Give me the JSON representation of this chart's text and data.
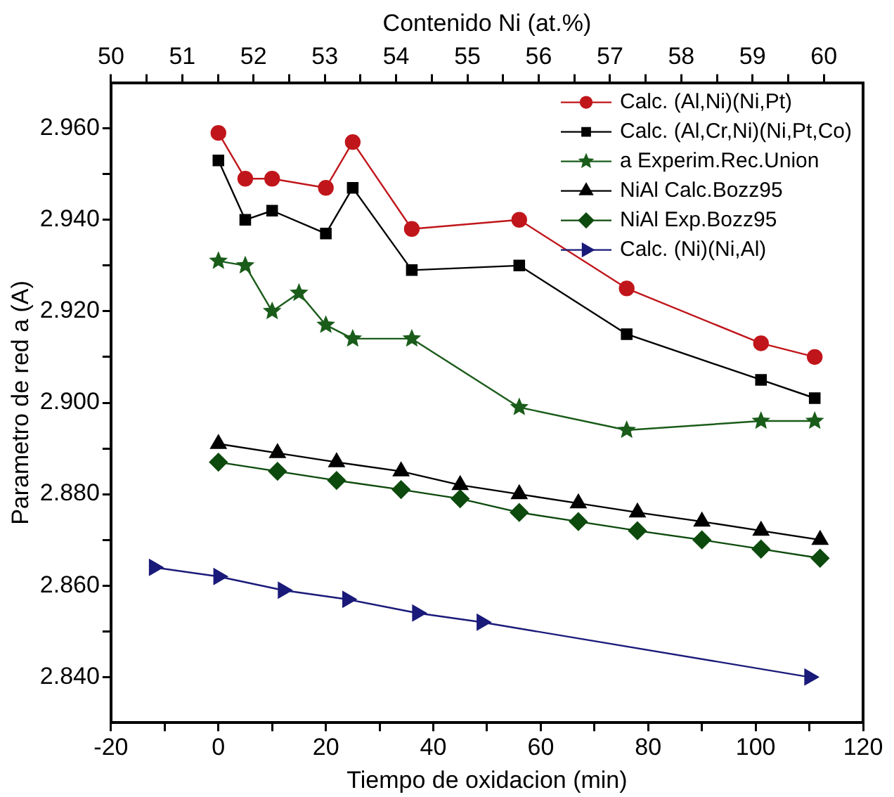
{
  "chart_data": {
    "type": "line",
    "xlabel": "Tiempo de oxidacion (min)",
    "ylabel": "Parametro de red a (A)",
    "x2label": "Contenido Ni (at.%)",
    "xlim": [
      -20,
      120
    ],
    "xticks": [
      -20,
      {
        "value": -10,
        "label": null
      },
      0,
      {
        "value": 10,
        "label": null
      },
      20,
      {
        "value": 30,
        "label": null
      },
      40,
      {
        "value": 50,
        "label": null
      },
      60,
      {
        "value": 70,
        "label": null
      },
      80,
      {
        "value": 90,
        "label": null
      },
      100,
      {
        "value": 110,
        "label": null
      },
      120
    ],
    "x2lim": [
      50,
      60.55
    ],
    "x2ticks": [
      50,
      {
        "value": 50.5,
        "label": null
      },
      51,
      {
        "value": 51.5,
        "label": null
      },
      52,
      {
        "value": 52.5,
        "label": null
      },
      53,
      {
        "value": 53.5,
        "label": null
      },
      54,
      {
        "value": 54.5,
        "label": null
      },
      55,
      {
        "value": 55.5,
        "label": null
      },
      56,
      {
        "value": 56.5,
        "label": null
      },
      57,
      {
        "value": 57.5,
        "label": null
      },
      58,
      {
        "value": 58.5,
        "label": null
      },
      59,
      {
        "value": 59.5,
        "label": null
      },
      60
    ],
    "ylim": [
      2.83,
      2.97
    ],
    "yticks": [
      {
        "value": 2.84,
        "label": "2.840"
      },
      {
        "value": 2.85,
        "label": null
      },
      {
        "value": 2.86,
        "label": "2.860"
      },
      {
        "value": 2.87,
        "label": null
      },
      {
        "value": 2.88,
        "label": "2.880"
      },
      {
        "value": 2.89,
        "label": null
      },
      {
        "value": 2.9,
        "label": "2.900"
      },
      {
        "value": 2.91,
        "label": null
      },
      {
        "value": 2.92,
        "label": "2.920"
      },
      {
        "value": 2.93,
        "label": null
      },
      {
        "value": 2.94,
        "label": "2.940"
      },
      {
        "value": 2.95,
        "label": null
      },
      {
        "value": 2.96,
        "label": "2.960"
      }
    ],
    "grid": false,
    "legend": "top right",
    "series": [
      {
        "name": "Calc. (Al,Ni)(Ni,Pt)",
        "color": "#c0161b",
        "marker": "circle",
        "x": [
          0,
          5,
          10,
          20,
          25,
          36,
          56,
          76,
          101,
          111
        ],
        "values": [
          2.959,
          2.949,
          2.949,
          2.947,
          2.957,
          2.938,
          2.94,
          2.925,
          2.913,
          2.91
        ]
      },
      {
        "name": "Calc. (Al,Cr,Ni)(Ni,Pt,Co)",
        "color": "#000000",
        "marker": "square",
        "x": [
          0,
          5,
          10,
          20,
          25,
          36,
          56,
          76,
          101,
          111
        ],
        "values": [
          2.953,
          2.94,
          2.942,
          2.937,
          2.947,
          2.929,
          2.93,
          2.915,
          2.905,
          2.901
        ]
      },
      {
        "name": "a Experim.Rec.Union",
        "color": "#1a5c1a",
        "marker": "star",
        "x": [
          0,
          5,
          10,
          15,
          20,
          25,
          36,
          56,
          76,
          101,
          111
        ],
        "values": [
          2.931,
          2.93,
          2.92,
          2.924,
          2.917,
          2.914,
          2.914,
          2.899,
          2.894,
          2.896,
          2.896
        ]
      },
      {
        "name": "NiAl Calc.Bozz95",
        "color": "#000000",
        "marker": "triangle",
        "x": [
          0,
          11,
          22,
          34,
          45,
          56,
          67,
          78,
          90,
          101,
          112
        ],
        "values": [
          2.891,
          2.889,
          2.887,
          2.885,
          2.882,
          2.88,
          2.878,
          2.876,
          2.874,
          2.872,
          2.87
        ]
      },
      {
        "name": "NiAl Exp.Bozz95",
        "color": "#0d4a0d",
        "marker": "diamond",
        "x": [
          0,
          11,
          22,
          34,
          45,
          56,
          67,
          78,
          90,
          101,
          112
        ],
        "values": [
          2.887,
          2.885,
          2.883,
          2.881,
          2.879,
          2.876,
          2.874,
          2.872,
          2.87,
          2.868,
          2.866
        ]
      },
      {
        "name": "Calc. (Ni)(Ni,Al)",
        "color": "#1a1a7a",
        "marker": "triangle-right",
        "x": [
          -12,
          0,
          12,
          24,
          37,
          49,
          110
        ],
        "values": [
          2.864,
          2.862,
          2.859,
          2.857,
          2.854,
          2.852,
          2.84
        ]
      }
    ]
  }
}
